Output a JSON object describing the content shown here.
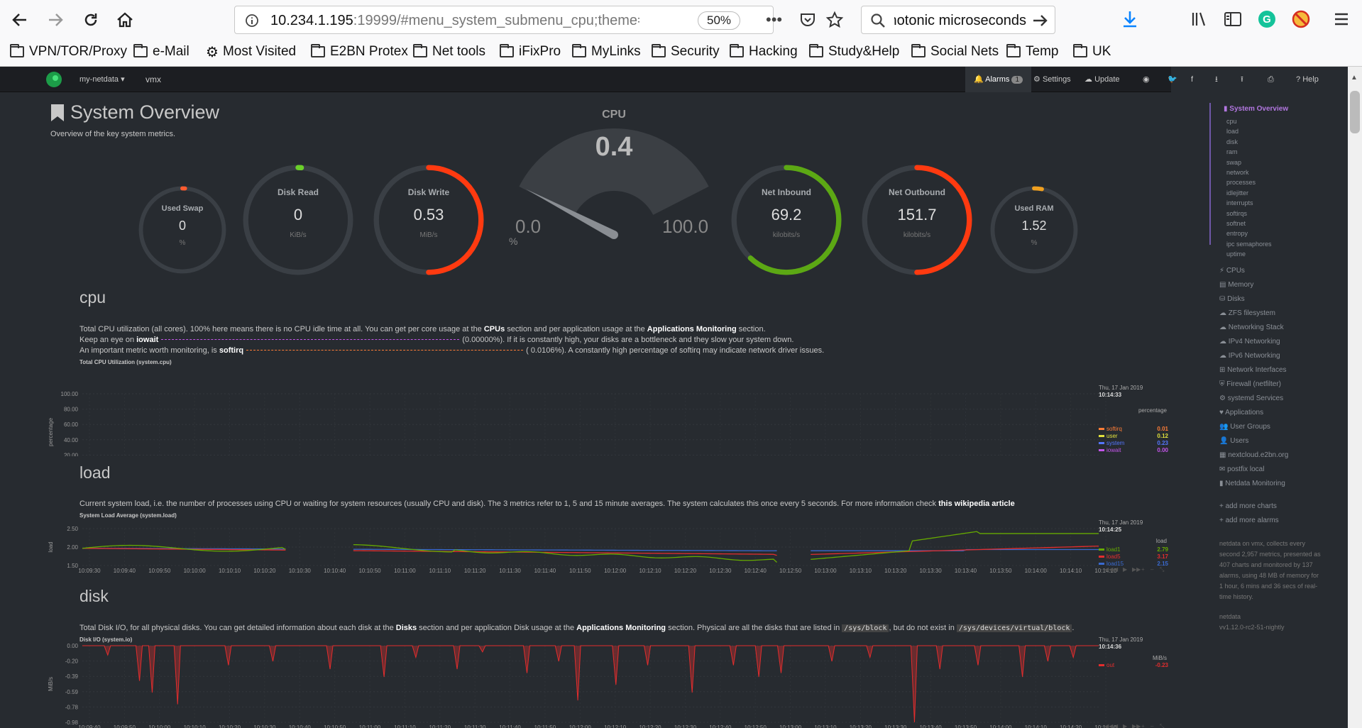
{
  "browser": {
    "url_host": "10.234.1.195",
    "url_rest": ":19999/#menu_system_submenu_cpu;theme=sla",
    "zoom": "50%",
    "search": "photonic microseconds",
    "bookmarks": [
      "VPN/TOR/Proxy",
      "e-Mail",
      "Most Visited",
      "E2BN Protex",
      "Net tools",
      "iFixPro",
      "MyLinks",
      "Security",
      "Hacking",
      "Study&Help",
      "Social Nets",
      "Temp",
      "UK"
    ]
  },
  "nav": {
    "host": "my-netdata",
    "host_name": "vmx",
    "alarms": "Alarms",
    "alarm_count": "1",
    "settings": "Settings",
    "update": "Update",
    "help": "Help"
  },
  "overview": {
    "title": "System Overview",
    "subtitle": "Overview of the key system metrics."
  },
  "gauges": [
    {
      "title": "Used Swap",
      "value": "0",
      "unit": "%",
      "color": "#ff5b2f",
      "level": 0.01
    },
    {
      "title": "Disk Read",
      "value": "0",
      "unit": "KiB/s",
      "color": "#6bd02a",
      "level": 0.01
    },
    {
      "title": "Disk Write",
      "value": "0.53",
      "unit": "MiB/s",
      "color": "#ff3a10",
      "level": 0.5
    },
    {
      "title": "Net Inbound",
      "value": "69.2",
      "unit": "kilobits/s",
      "color": "#5ca814",
      "level": 0.62
    },
    {
      "title": "Net Outbound",
      "value": "151.7",
      "unit": "kilobits/s",
      "color": "#ff3a10",
      "level": 0.5
    },
    {
      "title": "Used RAM",
      "value": "1.52",
      "unit": "%",
      "color": "#f0a020",
      "level": 0.03
    }
  ],
  "cpu_gauge": {
    "title": "CPU",
    "value": "0.4",
    "min": "0.0",
    "max": "100.0",
    "unit": "%",
    "level": 0.004
  },
  "sections": {
    "cpu": {
      "title": "cpu",
      "line1a": "Total CPU utilization (all cores). 100% here means there is no CPU idle time at all. You can get per core usage at the ",
      "line1b": "CPUs",
      "line1c": " section and per application usage at the ",
      "line1d": "Applications Monitoring",
      "line1e": " section.",
      "line2a": "Keep an eye on ",
      "line2b": "iowait",
      "line2c": "(0.00000%). If it is constantly high, your disks are a bottleneck and they slow your system down.",
      "line3a": "An important metric worth monitoring, is ",
      "line3b": "softirq",
      "line3c": "( 0.0106%). A constantly high percentage of softirq may indicate network driver issues.",
      "chart_title": "Total CPU Utilization (system.cpu)"
    },
    "load": {
      "title": "load",
      "desc": "Current system load, i.e. the number of processes using CPU or waiting for system resources (usually CPU and disk). The 3 metrics refer to 1, 5 and 15 minute averages. The system calculates this once every 5 seconds. For more information check ",
      "link": "this wikipedia article",
      "chart_title": "System Load Average (system.load)"
    },
    "disk": {
      "title": "disk",
      "desc_a": "Total Disk I/O, for all physical disks. You can get detailed information about each disk at the ",
      "desc_b": "Disks",
      "desc_c": " section and per application Disk usage at the ",
      "desc_d": "Applications Monitoring",
      "desc_e": " section. Physical are all the disks that are listed in ",
      "code1": "/sys/block",
      "desc_f": ", but do not exist in ",
      "code2": "/sys/devices/virtual/block",
      "desc_g": ".",
      "chart_title": "Disk I/O (system.io)"
    }
  },
  "chart_data": [
    {
      "type": "area",
      "title": "Total CPU Utilization (system.cpu)",
      "ylabel": "percentage",
      "ylim": [
        0,
        100
      ],
      "yticks": [
        "100.00",
        "80.00",
        "60.00",
        "40.00",
        "20.00",
        "0.00"
      ],
      "xticks": [
        "10:09:40",
        "10:09:50",
        "10:10:00",
        "10:10:10",
        "10:10:20",
        "10:10:30",
        "10:10:40",
        "10:10:50",
        "10:11:00",
        "10:11:10",
        "10:11:20",
        "10:11:30",
        "10:11:40",
        "10:11:50",
        "10:12:00",
        "10:12:10",
        "10:12:20",
        "10:12:30",
        "10:12:40",
        "10:12:50",
        "10:13:00",
        "10:13:10",
        "10:13:20",
        "10:13:30",
        "10:13:40",
        "10:13:50",
        "10:14:00",
        "10:14:10",
        "10:14:20",
        "10:14:30"
      ],
      "date": "Thu, 17 Jan 2019",
      "time": "10:14:33",
      "legend_unit": "percentage",
      "series": [
        {
          "name": "softirq",
          "value": "0.01",
          "color": "#fe7d37"
        },
        {
          "name": "user",
          "value": "0.12",
          "color": "#e0e03c"
        },
        {
          "name": "system",
          "value": "0.23",
          "color": "#5477ff"
        },
        {
          "name": "iowait",
          "value": "0.00",
          "color": "#c355ea"
        }
      ]
    },
    {
      "type": "line",
      "title": "System Load Average (system.load)",
      "ylabel": "load",
      "ylim": [
        1.5,
        3.0
      ],
      "yticks": [
        "2.50",
        "2.00",
        "1.50"
      ],
      "xticks": [
        "10:09:30",
        "10:09:40",
        "10:09:50",
        "10:10:00",
        "10:10:10",
        "10:10:20",
        "10:10:30",
        "10:10:40",
        "10:10:50",
        "10:11:00",
        "10:11:10",
        "10:11:20",
        "10:11:30",
        "10:11:40",
        "10:11:50",
        "10:12:00",
        "10:12:10",
        "10:12:20",
        "10:12:30",
        "10:12:40",
        "10:12:50",
        "10:13:00",
        "10:13:10",
        "10:13:20",
        "10:13:30",
        "10:13:40",
        "10:13:50",
        "10:14:00",
        "10:14:10",
        "10:14:20"
      ],
      "date": "Thu, 17 Jan 2019",
      "time": "10:14:25",
      "legend_unit": "load",
      "series": [
        {
          "name": "load1",
          "value": "2.79",
          "color": "#66aa00"
        },
        {
          "name": "load5",
          "value": "3.17",
          "color": "#e32d2d"
        },
        {
          "name": "load15",
          "value": "2.15",
          "color": "#3a6ad0"
        }
      ]
    },
    {
      "type": "area",
      "title": "Disk I/O (system.io)",
      "ylabel": "MiB/s",
      "ylim": [
        -0.98,
        0
      ],
      "yticks": [
        "0.00",
        "-0.20",
        "-0.39",
        "-0.59",
        "-0.78",
        "-0.98"
      ],
      "xticks": [
        "10:09:40",
        "10:09:50",
        "10:10:00",
        "10:10:10",
        "10:10:20",
        "10:10:30",
        "10:10:40",
        "10:10:50",
        "10:11:00",
        "10:11:10",
        "10:11:20",
        "10:11:30",
        "10:11:40",
        "10:11:50",
        "10:12:00",
        "10:12:10",
        "10:12:20",
        "10:12:30",
        "10:12:40",
        "10:12:50",
        "10:13:00",
        "10:13:10",
        "10:13:20",
        "10:13:30",
        "10:13:40",
        "10:13:50",
        "10:14:00",
        "10:14:10",
        "10:14:20",
        "10:14:30"
      ],
      "date": "Thu, 17 Jan 2019",
      "time": "10:14:36",
      "legend_unit": "MiB/s",
      "series": [
        {
          "name": "out",
          "value": "-0.23",
          "color": "#e32d2d"
        }
      ]
    }
  ],
  "sidebar": {
    "active": "System Overview",
    "sub": [
      "cpu",
      "load",
      "disk",
      "ram",
      "swap",
      "network",
      "processes",
      "idlejitter",
      "interrupts",
      "softirqs",
      "softnet",
      "entropy",
      "ipc semaphores",
      "uptime"
    ],
    "menus": [
      "CPUs",
      "Memory",
      "Disks",
      "ZFS filesystem",
      "Networking Stack",
      "IPv4 Networking",
      "IPv6 Networking",
      "Network Interfaces",
      "Firewall (netfilter)",
      "systemd Services",
      "Applications",
      "User Groups",
      "Users",
      "nextcloud.e2bn.org",
      "postfix local",
      "Netdata Monitoring"
    ],
    "add_charts": "add more charts",
    "add_alarms": "add more alarms",
    "info": [
      "netdata on vmx, collects every",
      "second 2,957 metrics, presented as",
      "407 charts and monitored by 137",
      "alarms, using 48 MB of memory for",
      "1 hour, 6 mins and 36 secs of real-",
      "time history."
    ],
    "footer_name": "netdata",
    "footer_version": "vv1.12.0-rc2-51-nightly"
  }
}
